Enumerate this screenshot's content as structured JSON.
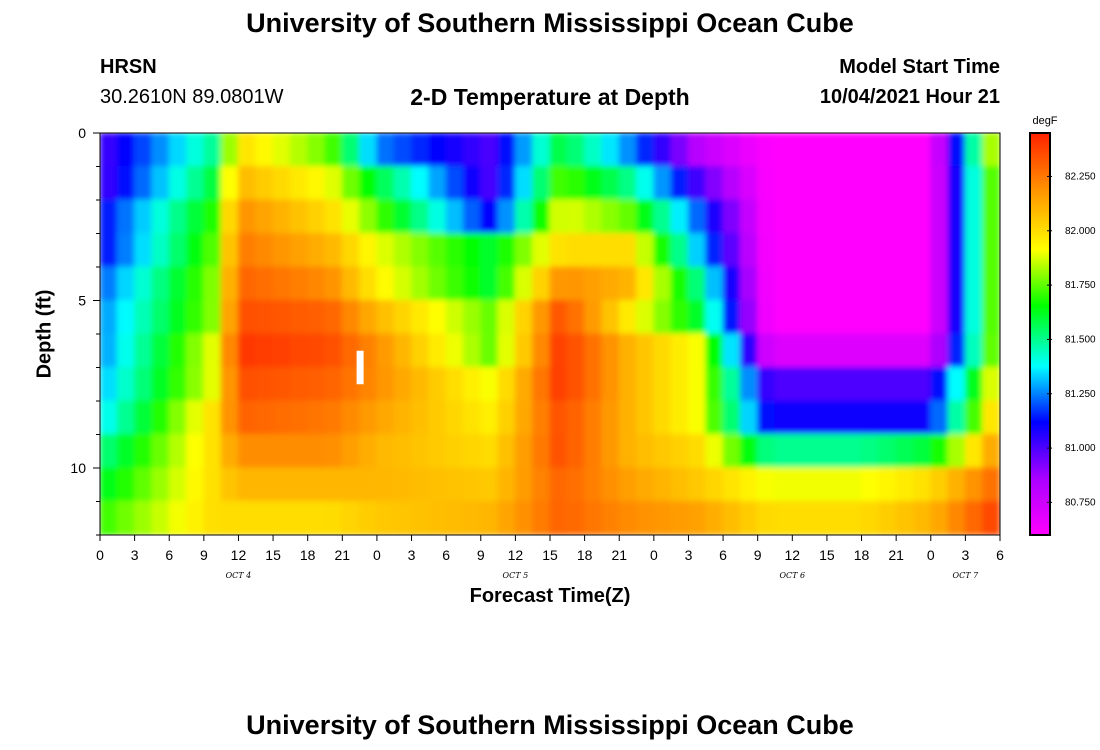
{
  "header": {
    "top_title": "University of Southern Mississippi Ocean Cube",
    "bottom_title": "University of Southern Mississippi Ocean Cube",
    "station_name": "HRSN",
    "station_coords": "30.2610N  89.0801W",
    "model_start_label": "Model Start Time",
    "model_start_value": "10/04/2021 Hour 21"
  },
  "chart_data": {
    "type": "heatmap",
    "title": "2-D Temperature at Depth",
    "xlabel": "Forecast Time(Z)",
    "ylabel": "Depth (ft)",
    "x_hours": [
      0,
      3,
      6,
      9,
      12,
      15,
      18,
      21,
      24,
      27,
      30,
      33,
      36,
      39,
      42,
      45,
      48,
      51,
      54,
      57,
      60,
      63,
      66,
      69,
      72,
      75,
      78
    ],
    "x_tick_labels": [
      "0",
      "3",
      "6",
      "9",
      "12",
      "15",
      "18",
      "21",
      "0",
      "3",
      "6",
      "9",
      "12",
      "15",
      "18",
      "21",
      "0",
      "3",
      "6",
      "9",
      "12",
      "15",
      "18",
      "21",
      "0",
      "3",
      "6"
    ],
    "date_labels": [
      {
        "hour": 12,
        "text": "OCT 4"
      },
      {
        "hour": 36,
        "text": "OCT 5"
      },
      {
        "hour": 60,
        "text": "OCT 6"
      },
      {
        "hour": 75,
        "text": "OCT 7"
      }
    ],
    "y_ticks": [
      0,
      5,
      10
    ],
    "ylim": [
      0,
      12
    ],
    "y_inverted": true,
    "colorbar": {
      "unit": "degF",
      "min": 80.6,
      "max": 82.45,
      "tick_values": [
        80.75,
        81.0,
        81.25,
        81.5,
        81.75,
        82.0,
        82.25
      ],
      "tick_labels": [
        "80.750",
        "81.000",
        "81.250",
        "81.500",
        "81.750",
        "82.000",
        "82.250"
      ]
    },
    "marker": {
      "hour": 22.5,
      "depth_top": 6.5,
      "depth_bottom": 7.5
    },
    "depth_levels": [
      0.5,
      1.5,
      2.5,
      3.5,
      4.5,
      5.5,
      6.5,
      7.5,
      8.5,
      9.5,
      10.5,
      11.5
    ],
    "time_columns": [
      0,
      10,
      12,
      20,
      24,
      34,
      40,
      46,
      52,
      58,
      66,
      72,
      78
    ],
    "values": [
      [
        81.0,
        81.5,
        82.0,
        81.75,
        81.25,
        81.0,
        81.6,
        81.25,
        80.8,
        80.6,
        80.6,
        80.6,
        82.0
      ],
      [
        81.0,
        81.6,
        82.1,
        81.9,
        81.6,
        81.0,
        81.75,
        81.5,
        81.0,
        80.6,
        80.6,
        80.6,
        81.9
      ],
      [
        81.1,
        81.7,
        82.2,
        82.0,
        81.75,
        81.1,
        81.9,
        81.75,
        81.2,
        80.6,
        80.6,
        80.6,
        81.9
      ],
      [
        81.1,
        81.75,
        82.25,
        82.1,
        81.9,
        81.6,
        82.0,
        82.0,
        81.3,
        80.6,
        80.6,
        80.6,
        81.9
      ],
      [
        81.2,
        81.8,
        82.3,
        82.2,
        81.95,
        81.6,
        82.2,
        82.1,
        81.5,
        80.6,
        80.6,
        80.6,
        81.9
      ],
      [
        81.25,
        81.8,
        82.35,
        82.3,
        82.1,
        81.75,
        82.35,
        81.95,
        81.6,
        80.6,
        80.6,
        80.6,
        81.9
      ],
      [
        81.25,
        81.9,
        82.4,
        82.35,
        82.2,
        81.75,
        82.4,
        82.1,
        81.9,
        80.7,
        80.7,
        80.7,
        81.9
      ],
      [
        81.3,
        81.9,
        82.35,
        82.3,
        82.2,
        81.9,
        82.4,
        82.1,
        81.9,
        81.0,
        81.0,
        81.0,
        82.0
      ],
      [
        81.35,
        82.0,
        82.3,
        82.25,
        82.15,
        81.95,
        82.35,
        82.1,
        81.9,
        81.1,
        81.1,
        81.1,
        82.1
      ],
      [
        81.5,
        82.0,
        82.2,
        82.2,
        82.1,
        82.0,
        82.35,
        82.1,
        82.0,
        81.5,
        81.5,
        81.6,
        82.2
      ],
      [
        81.6,
        82.0,
        82.1,
        82.1,
        82.1,
        82.05,
        82.3,
        82.15,
        82.05,
        81.9,
        81.9,
        82.0,
        82.3
      ],
      [
        81.7,
        82.0,
        82.0,
        82.0,
        82.05,
        82.1,
        82.3,
        82.2,
        82.15,
        82.0,
        82.0,
        82.1,
        82.4
      ]
    ]
  }
}
